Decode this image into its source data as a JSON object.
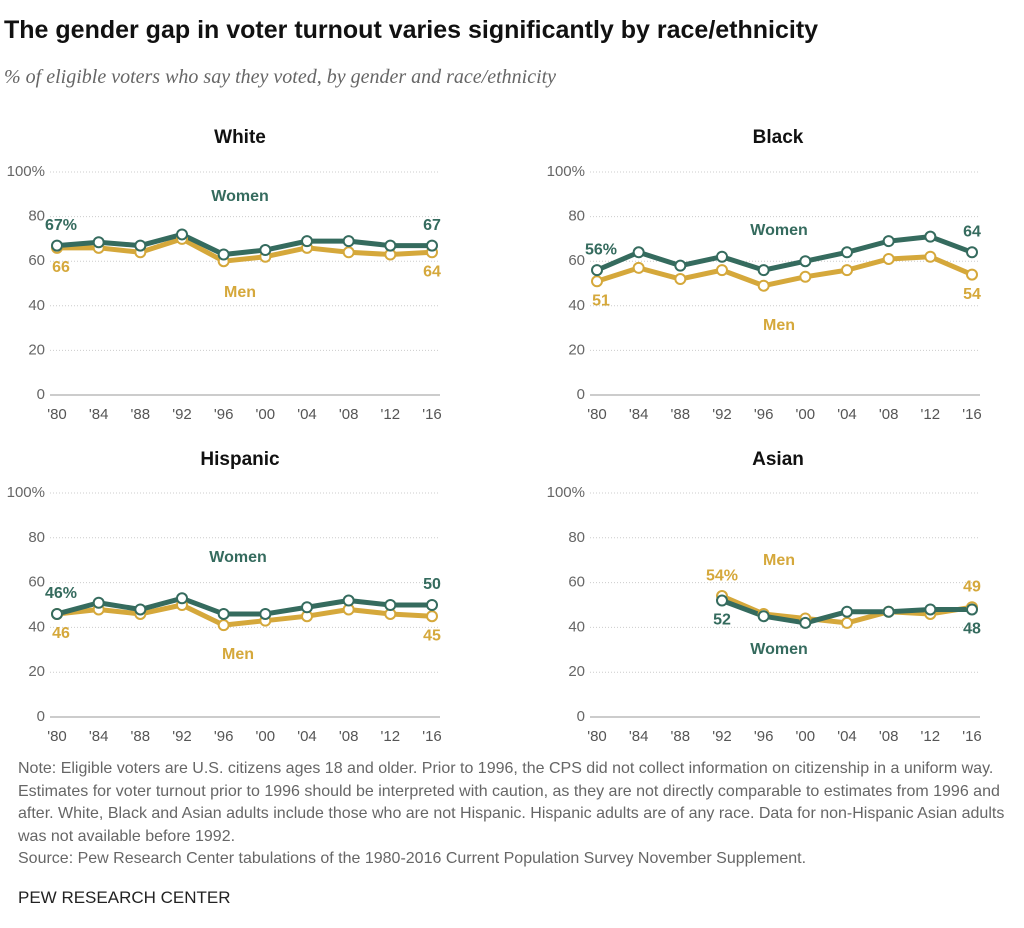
{
  "title": "The gender gap in voter turnout varies significantly by race/ethnicity",
  "subtitle": "% of eligible voters who say they voted, by gender and race/ethnicity",
  "note": "Note: Eligible voters are U.S. citizens ages 18 and older. Prior to 1996, the CPS did not collect information on citizenship in a uniform way. Estimates for voter turnout prior to 1996 should be interpreted with caution, as they are not directly comparable to estimates from 1996 and after. White, Black and Asian adults include those who are not Hispanic. Hispanic adults are of any race. Data for non-Hispanic Asian adults was not available before 1992.",
  "source": "Source: Pew Research Center tabulations of the 1980-2016 Current Population Survey November Supplement.",
  "credit": "PEW RESEARCH CENTER",
  "chart_data": [
    {
      "type": "line",
      "title": "White",
      "categories": [
        "'80",
        "'84",
        "'88",
        "'92",
        "'96",
        "'00",
        "'04",
        "'08",
        "'12",
        "'16"
      ],
      "series": [
        {
          "name": "Women",
          "color": "#356b5e",
          "values": [
            67,
            68.5,
            67,
            72,
            63,
            65,
            69,
            69,
            67,
            67
          ],
          "value_labels": [
            "67%",
            null,
            null,
            null,
            null,
            null,
            null,
            null,
            null,
            "67"
          ]
        },
        {
          "name": "Men",
          "color": "#d5a83b",
          "values": [
            66,
            66,
            64,
            70,
            60,
            62,
            66,
            64,
            63,
            64
          ],
          "value_labels": [
            "66",
            null,
            null,
            null,
            null,
            null,
            null,
            null,
            null,
            "64"
          ]
        }
      ],
      "ylim": [
        0,
        100
      ],
      "yticks": [
        0,
        20,
        40,
        60,
        80,
        {
          "value": 100,
          "label": "100%"
        }
      ],
      "grid": true
    },
    {
      "type": "line",
      "title": "Black",
      "categories": [
        "'80",
        "'84",
        "'88",
        "'92",
        "'96",
        "'00",
        "'04",
        "'08",
        "'12",
        "'16"
      ],
      "series": [
        {
          "name": "Women",
          "color": "#356b5e",
          "values": [
            56,
            64,
            58,
            62,
            56,
            60,
            64,
            69,
            71,
            64
          ],
          "value_labels": [
            "56%",
            null,
            null,
            null,
            null,
            null,
            null,
            null,
            null,
            "64"
          ]
        },
        {
          "name": "Men",
          "color": "#d5a83b",
          "values": [
            51,
            57,
            52,
            56,
            49,
            53,
            56,
            61,
            62,
            54
          ],
          "value_labels": [
            "51",
            null,
            null,
            null,
            null,
            null,
            null,
            null,
            null,
            "54"
          ]
        }
      ],
      "ylim": [
        0,
        100
      ],
      "yticks": [
        0,
        20,
        40,
        60,
        80,
        {
          "value": 100,
          "label": "100%"
        }
      ],
      "grid": true
    },
    {
      "type": "line",
      "title": "Hispanic",
      "categories": [
        "'80",
        "'84",
        "'88",
        "'92",
        "'96",
        "'00",
        "'04",
        "'08",
        "'12",
        "'16"
      ],
      "series": [
        {
          "name": "Women",
          "color": "#356b5e",
          "values": [
            46,
            51,
            48,
            53,
            46,
            46,
            49,
            52,
            50,
            50
          ],
          "value_labels": [
            "46%",
            null,
            null,
            null,
            null,
            null,
            null,
            null,
            null,
            "50"
          ]
        },
        {
          "name": "Men",
          "color": "#d5a83b",
          "values": [
            46,
            48,
            46,
            50,
            41,
            43,
            45,
            48,
            46,
            45
          ],
          "value_labels": [
            "46",
            null,
            null,
            null,
            null,
            null,
            null,
            null,
            null,
            "45"
          ]
        }
      ],
      "ylim": [
        0,
        100
      ],
      "yticks": [
        0,
        20,
        40,
        60,
        80,
        {
          "value": 100,
          "label": "100%"
        }
      ],
      "grid": true
    },
    {
      "type": "line",
      "title": "Asian",
      "categories": [
        "'80",
        "'84",
        "'88",
        "'92",
        "'96",
        "'00",
        "'04",
        "'08",
        "'12",
        "'16"
      ],
      "series": [
        {
          "name": "Women",
          "color": "#356b5e",
          "values": [
            null,
            null,
            null,
            52,
            45,
            42,
            47,
            47,
            48,
            48
          ],
          "value_labels": [
            null,
            null,
            null,
            "52",
            null,
            null,
            null,
            null,
            null,
            "48"
          ]
        },
        {
          "name": "Men",
          "color": "#d5a83b",
          "values": [
            null,
            null,
            null,
            54,
            46,
            44,
            42,
            47,
            46,
            49
          ],
          "value_labels": [
            null,
            null,
            null,
            "54%",
            null,
            null,
            null,
            null,
            null,
            "49"
          ]
        }
      ],
      "ylim": [
        0,
        100
      ],
      "yticks": [
        0,
        20,
        40,
        60,
        80,
        {
          "value": 100,
          "label": "100%"
        }
      ],
      "grid": true
    }
  ]
}
